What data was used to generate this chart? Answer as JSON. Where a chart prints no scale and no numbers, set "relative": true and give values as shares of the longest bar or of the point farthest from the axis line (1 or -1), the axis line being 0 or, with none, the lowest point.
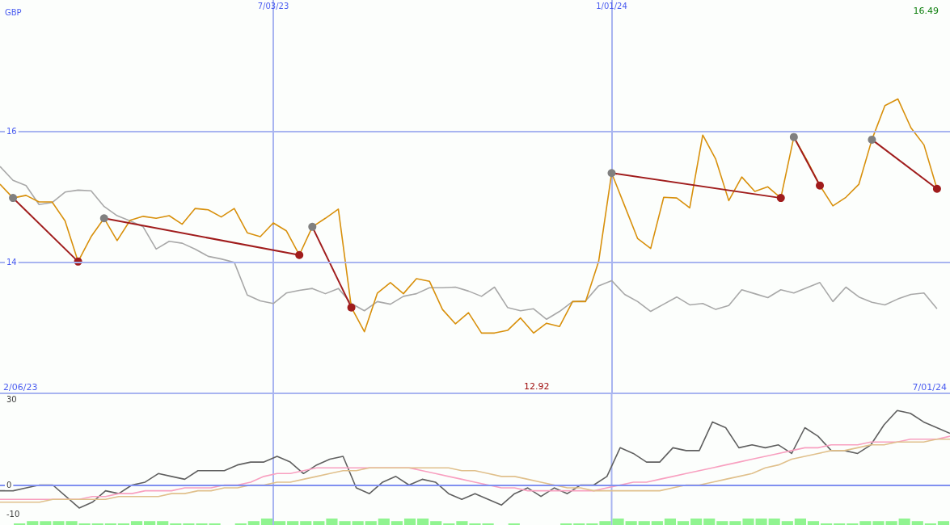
{
  "chart_data": [
    {
      "type": "line",
      "ylabel": "GBP",
      "annotations": [
        "16.49",
        "12.92",
        "2/06/23",
        "7/01/24"
      ],
      "x": [
        "2023-02-06",
        "2023-02-13",
        "2023-02-20",
        "2023-02-27",
        "2023-03-06",
        "2023-03-13",
        "2023-03-20",
        "2023-03-27",
        "2023-04-03",
        "2023-04-10",
        "2023-04-17",
        "2023-04-24",
        "2023-05-01",
        "2023-05-08",
        "2023-05-15",
        "2023-05-22",
        "2023-05-29",
        "2023-06-05",
        "2023-06-12",
        "2023-06-19",
        "2023-06-26",
        "2023-07-03",
        "2023-07-10",
        "2023-07-17",
        "2023-07-24",
        "2023-07-31",
        "2023-08-07",
        "2023-08-14",
        "2023-08-21",
        "2023-08-28",
        "2023-09-04",
        "2023-09-11",
        "2023-09-18",
        "2023-09-25",
        "2023-10-02",
        "2023-10-09",
        "2023-10-16",
        "2023-10-23",
        "2023-10-30",
        "2023-11-06",
        "2023-11-13",
        "2023-11-20",
        "2023-11-27",
        "2023-12-04",
        "2023-12-11",
        "2023-12-18",
        "2023-12-25",
        "2024-01-01",
        "2024-01-08",
        "2024-01-15",
        "2024-01-22",
        "2024-01-29",
        "2024-02-05",
        "2024-02-12",
        "2024-02-19",
        "2024-02-26",
        "2024-03-04",
        "2024-03-11",
        "2024-03-18",
        "2024-03-25",
        "2024-04-01",
        "2024-04-08",
        "2024-04-15",
        "2024-04-22",
        "2024-04-29",
        "2024-05-06",
        "2024-05-13",
        "2024-05-20",
        "2024-05-27",
        "2024-06-03",
        "2024-06-10",
        "2024-06-17",
        "2024-06-24"
      ],
      "xlim": [
        "2023-02-06",
        "2024-07-01"
      ],
      "xticks": [
        {
          "value": "2023-07-03",
          "label": "7/03/23"
        },
        {
          "value": "2024-01-01",
          "label": "1/01/24"
        }
      ],
      "ylim": [
        12,
        18
      ],
      "yticks": [
        14,
        16
      ],
      "grid": true,
      "series": [
        {
          "color": "#a8a8a8",
          "values": [
            15.46,
            15.25,
            15.17,
            14.88,
            14.91,
            15.07,
            15.1,
            15.09,
            14.85,
            14.71,
            14.63,
            14.54,
            14.2,
            14.32,
            14.29,
            14.2,
            14.09,
            14.05,
            14.0,
            13.5,
            13.41,
            13.37,
            13.53,
            13.57,
            13.6,
            13.52,
            13.6,
            13.37,
            13.26,
            13.4,
            13.36,
            13.48,
            13.52,
            13.61,
            13.61,
            13.62,
            13.56,
            13.48,
            13.62,
            13.31,
            13.26,
            13.29,
            13.13,
            13.25,
            13.4,
            13.41,
            13.64,
            13.72,
            13.51,
            13.4,
            13.25,
            13.36,
            13.47,
            13.35,
            13.37,
            13.28,
            13.34,
            13.58,
            13.52,
            13.46,
            13.58,
            13.53,
            13.61,
            13.69,
            13.4,
            13.62,
            13.47,
            13.39,
            13.35,
            13.44,
            13.51,
            13.53,
            13.29
          ]
        },
        {
          "color": "#d8900c",
          "values": [
            15.19,
            14.98,
            15.02,
            14.92,
            14.92,
            14.63,
            14.01,
            14.39,
            14.67,
            14.33,
            14.64,
            14.7,
            14.67,
            14.71,
            14.58,
            14.82,
            14.8,
            14.69,
            14.82,
            14.45,
            14.39,
            14.6,
            14.48,
            14.11,
            14.54,
            14.67,
            14.81,
            13.31,
            12.94,
            13.53,
            13.69,
            13.52,
            13.75,
            13.71,
            13.28,
            13.06,
            13.23,
            12.92,
            12.92,
            12.96,
            13.15,
            12.92,
            13.07,
            13.02,
            13.4,
            13.4,
            14.01,
            15.36,
            14.86,
            14.36,
            14.21,
            14.99,
            14.98,
            14.83,
            15.94,
            15.57,
            14.94,
            15.3,
            15.08,
            15.15,
            14.98,
            15.91,
            15.56,
            15.17,
            14.86,
            14.99,
            15.19,
            15.87,
            16.39,
            16.49,
            16.05,
            15.79,
            15.12
          ]
        },
        {
          "color": "#a01c1c",
          "marker": "circle",
          "colors": [
            "#808080",
            "#a01c1c"
          ],
          "x": [
            "2023-02-13",
            "2023-03-20"
          ],
          "values": [
            14.98,
            14.01
          ]
        },
        {
          "color": "#a01c1c",
          "marker": "circle",
          "colors": [
            "#808080",
            "#a01c1c"
          ],
          "x": [
            "2023-04-03",
            "2023-07-17"
          ],
          "values": [
            14.67,
            14.11
          ]
        },
        {
          "color": "#a01c1c",
          "marker": "circle",
          "colors": [
            "#808080",
            "#a01c1c"
          ],
          "x": [
            "2023-07-24",
            "2023-08-14"
          ],
          "values": [
            14.54,
            13.31
          ]
        },
        {
          "color": "#a01c1c",
          "marker": "circle",
          "colors": [
            "#808080",
            "#a01c1c"
          ],
          "x": [
            "2024-01-01",
            "2024-04-01"
          ],
          "values": [
            15.36,
            14.98
          ]
        },
        {
          "color": "#a01c1c",
          "marker": "circle",
          "colors": [
            "#808080",
            "#a01c1c"
          ],
          "x": [
            "2024-04-08",
            "2024-04-22"
          ],
          "values": [
            15.91,
            15.17
          ]
        },
        {
          "color": "#a01c1c",
          "marker": "circle",
          "colors": [
            "#808080",
            "#a01c1c"
          ],
          "x": [
            "2024-05-20",
            "2024-06-24"
          ],
          "values": [
            15.87,
            15.12
          ]
        }
      ]
    },
    {
      "type": "line",
      "tick_labels": "y",
      "categories": [
        null,
        null,
        null,
        null,
        null,
        null,
        null,
        null,
        null,
        null,
        null,
        null,
        null,
        null,
        null,
        null,
        null,
        null,
        null,
        null,
        null,
        null,
        null,
        null,
        null,
        null,
        null,
        null,
        null,
        null,
        null,
        null,
        null,
        null,
        null,
        null,
        null,
        null,
        null,
        null,
        null,
        null,
        null,
        null,
        null,
        null,
        null,
        null,
        null,
        null,
        null,
        null,
        null,
        null,
        null,
        null,
        null,
        null,
        null,
        null,
        null,
        null,
        null,
        null,
        null,
        null,
        null,
        null,
        null,
        null,
        null,
        null,
        null
      ],
      "ylim": [
        -10,
        30
      ],
      "yticks": [
        30,
        0,
        -10
      ],
      "ref_lines": [
        {
          "axis": "y",
          "value": 0,
          "color": "#8090f0"
        }
      ],
      "series": [
        {
          "color": "#606060",
          "values": [
            -2,
            -2,
            -1,
            0,
            0,
            -4,
            -8,
            -6,
            -2,
            -3,
            0,
            1,
            4,
            3,
            2,
            5,
            5,
            5,
            7,
            8,
            8,
            10,
            8,
            4,
            7,
            9,
            10,
            -1,
            -3,
            1,
            3,
            0,
            2,
            1,
            -3,
            -5,
            -3,
            -5,
            -7,
            -3,
            -1,
            -4,
            -1,
            -3,
            0,
            0,
            3,
            13,
            11,
            8,
            8,
            13,
            12,
            12,
            22,
            20,
            13,
            14,
            13,
            14,
            11,
            20,
            17,
            12,
            12,
            11,
            14,
            21,
            26,
            25,
            22,
            20,
            18
          ]
        },
        {
          "color": "#f8a0c0",
          "values": [
            -5,
            -5,
            -5,
            -5,
            -5,
            -5,
            -5,
            -4,
            -4,
            -3,
            -3,
            -2,
            -2,
            -2,
            -1,
            -1,
            -1,
            0,
            0,
            1,
            3,
            4,
            4,
            5,
            6,
            6,
            6,
            6,
            6,
            6,
            6,
            6,
            5,
            4,
            3,
            2,
            1,
            0,
            -1,
            -1,
            -2,
            -2,
            -2,
            -2,
            -2,
            -2,
            -1,
            0,
            1,
            1,
            2,
            3,
            4,
            5,
            6,
            7,
            8,
            9,
            10,
            11,
            12,
            13,
            13,
            14,
            14,
            14,
            15,
            15,
            15,
            16,
            16,
            16,
            17
          ]
        },
        {
          "color": "#e0c08c",
          "values": [
            -6,
            -6,
            -6,
            -6,
            -5,
            -5,
            -5,
            -5,
            -5,
            -4,
            -4,
            -4,
            -4,
            -3,
            -3,
            -2,
            -2,
            -1,
            -1,
            0,
            0,
            1,
            1,
            2,
            3,
            4,
            5,
            5,
            6,
            6,
            6,
            6,
            6,
            6,
            6,
            5,
            5,
            4,
            3,
            3,
            2,
            1,
            0,
            -1,
            -1,
            -2,
            -2,
            -2,
            -2,
            -2,
            -2,
            -1,
            0,
            0,
            1,
            2,
            3,
            4,
            6,
            7,
            9,
            10,
            11,
            12,
            12,
            13,
            14,
            14,
            15,
            15,
            15,
            16,
            16
          ]
        }
      ]
    },
    {
      "type": "bar",
      "relative": true,
      "tick_labels": false,
      "color": "#90f490",
      "categories": [
        null,
        null,
        null,
        null,
        null,
        null,
        null,
        null,
        null,
        null,
        null,
        null,
        null,
        null,
        null,
        null,
        null,
        null,
        null,
        null,
        null,
        null,
        null,
        null,
        null,
        null,
        null,
        null,
        null,
        null,
        null,
        null,
        null,
        null,
        null,
        null,
        null,
        null,
        null,
        null,
        null,
        null,
        null,
        null,
        null,
        null,
        null,
        null,
        null,
        null,
        null,
        null,
        null,
        null,
        null,
        null,
        null,
        null,
        null,
        null,
        null,
        null,
        null,
        null,
        null,
        null,
        null,
        null,
        null,
        null,
        null,
        null,
        null
      ],
      "values": [
        0,
        0.25,
        0.6,
        0.6,
        0.6,
        0.6,
        0.25,
        0.25,
        0.25,
        0.25,
        0.6,
        0.6,
        0.6,
        0.25,
        0.25,
        0.25,
        0.25,
        0,
        0.25,
        0.6,
        1,
        0.6,
        0.6,
        0.6,
        0.6,
        1,
        0.6,
        0.6,
        0.6,
        1,
        0.6,
        1,
        1,
        0.6,
        0.25,
        0.6,
        0.25,
        0.25,
        0,
        0.25,
        0,
        0,
        0,
        0.25,
        0.25,
        0.25,
        0.6,
        1,
        0.6,
        0.6,
        0.6,
        1,
        0.6,
        1,
        1,
        0.6,
        0.6,
        1,
        1,
        1,
        0.6,
        1,
        0.6,
        0.25,
        0.25,
        0.25,
        0.6,
        0.6,
        0.6,
        1,
        0.6,
        0.25,
        0.6
      ]
    }
  ]
}
